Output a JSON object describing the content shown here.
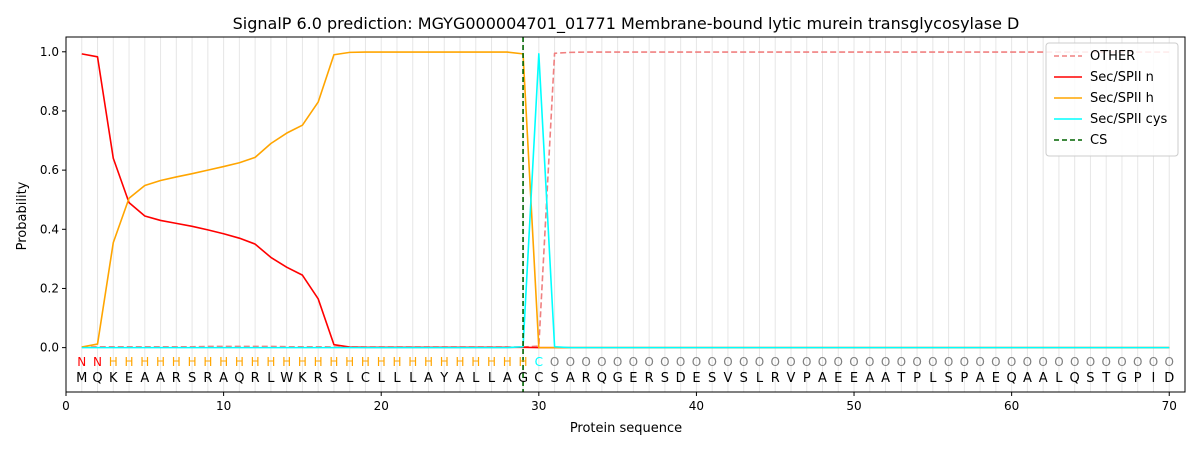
{
  "chart_data": {
    "type": "line",
    "title": "SignalP 6.0 prediction: MGYG000004701_01771 Membrane-bound lytic murein transglycosylase D",
    "xlabel": "Protein sequence",
    "ylabel": "Probability",
    "xlim": [
      0,
      71
    ],
    "ylim": [
      -0.15,
      1.05
    ],
    "x_ticks": [
      0,
      10,
      20,
      30,
      40,
      50,
      60,
      70
    ],
    "y_ticks": [
      0.0,
      0.2,
      0.4,
      0.6,
      0.8,
      1.0
    ],
    "x_tick_labels": [
      "0",
      "10",
      "20",
      "30",
      "40",
      "50",
      "60",
      "70"
    ],
    "y_tick_labels": [
      "0.0",
      "0.2",
      "0.4",
      "0.6",
      "0.8",
      "1.0"
    ],
    "grid": "vertical lines at each residue position",
    "legend_position": "top-right",
    "sequence": [
      "M",
      "Q",
      "K",
      "E",
      "A",
      "A",
      "R",
      "S",
      "R",
      "A",
      "Q",
      "R",
      "L",
      "W",
      "K",
      "R",
      "S",
      "L",
      "C",
      "L",
      "L",
      "L",
      "A",
      "Y",
      "A",
      "L",
      "L",
      "A",
      "G",
      "C",
      "S",
      "A",
      "R",
      "Q",
      "G",
      "E",
      "R",
      "S",
      "D",
      "E",
      "S",
      "V",
      "S",
      "L",
      "R",
      "V",
      "P",
      "A",
      "E",
      "E",
      "A",
      "A",
      "T",
      "P",
      "L",
      "S",
      "P",
      "A",
      "E",
      "Q",
      "A",
      "A",
      "L",
      "Q",
      "S",
      "T",
      "G",
      "P",
      "I",
      "D"
    ],
    "region_labels": [
      "N",
      "N",
      "H",
      "H",
      "H",
      "H",
      "H",
      "H",
      "H",
      "H",
      "H",
      "H",
      "H",
      "H",
      "H",
      "H",
      "H",
      "H",
      "H",
      "H",
      "H",
      "H",
      "H",
      "H",
      "H",
      "H",
      "H",
      "H",
      "H",
      "C",
      "O",
      "O",
      "O",
      "O",
      "O",
      "O",
      "O",
      "O",
      "O",
      "O",
      "O",
      "O",
      "O",
      "O",
      "O",
      "O",
      "O",
      "O",
      "O",
      "O",
      "O",
      "O",
      "O",
      "O",
      "O",
      "O",
      "O",
      "O",
      "O",
      "O",
      "O",
      "O",
      "O",
      "O",
      "O",
      "O",
      "O",
      "O",
      "O",
      "O"
    ],
    "region_label_colors": {
      "N": "#ff0000",
      "H": "#ffa500",
      "C": "#00ffff",
      "O": "#808080"
    },
    "series": [
      {
        "name": "OTHER",
        "color": "#f08080",
        "dash": "dashed",
        "x": [
          1,
          2,
          3,
          4,
          5,
          6,
          7,
          8,
          9,
          10,
          11,
          12,
          13,
          14,
          15,
          16,
          17,
          18,
          19,
          20,
          21,
          22,
          23,
          24,
          25,
          26,
          27,
          28,
          29,
          30,
          31,
          32,
          33,
          34,
          35,
          36,
          37,
          38,
          39,
          40,
          41,
          42,
          43,
          44,
          45,
          46,
          47,
          48,
          49,
          50,
          51,
          52,
          53,
          54,
          55,
          56,
          57,
          58,
          59,
          60,
          61,
          62,
          63,
          64,
          65,
          66,
          67,
          68,
          69,
          70
        ],
        "values": [
          0.002,
          0.003,
          0.003,
          0.003,
          0.003,
          0.003,
          0.003,
          0.003,
          0.004,
          0.004,
          0.004,
          0.004,
          0.004,
          0.003,
          0.003,
          0.003,
          0.002,
          0.002,
          0.002,
          0.002,
          0.002,
          0.002,
          0.002,
          0.002,
          0.002,
          0.002,
          0.002,
          0.002,
          0.002,
          0.005,
          0.995,
          0.998,
          0.999,
          0.999,
          0.999,
          0.999,
          0.999,
          0.999,
          0.999,
          0.999,
          0.999,
          0.999,
          0.999,
          0.999,
          0.999,
          0.999,
          0.999,
          0.999,
          0.999,
          0.999,
          0.999,
          0.999,
          0.999,
          0.999,
          0.999,
          0.999,
          0.999,
          0.999,
          0.999,
          0.999,
          0.999,
          0.999,
          0.999,
          0.999,
          0.999,
          0.999,
          0.999,
          0.999,
          0.999,
          0.999
        ]
      },
      {
        "name": "Sec/SPII n",
        "color": "#ff0000",
        "dash": "solid",
        "x": [
          1,
          2,
          3,
          4,
          5,
          6,
          7,
          8,
          9,
          10,
          11,
          12,
          13,
          14,
          15,
          16,
          17,
          18,
          19,
          20,
          21,
          22,
          23,
          24,
          25,
          26,
          27,
          28,
          29,
          30,
          31,
          32,
          33,
          34,
          35,
          36,
          37,
          38,
          39,
          40,
          41,
          42,
          43,
          44,
          45,
          46,
          47,
          48,
          49,
          50,
          51,
          52,
          53,
          54,
          55,
          56,
          57,
          58,
          59,
          60,
          61,
          62,
          63,
          64,
          65,
          66,
          67,
          68,
          69,
          70
        ],
        "values": [
          0.993,
          0.983,
          0.64,
          0.49,
          0.445,
          0.43,
          0.42,
          0.41,
          0.398,
          0.385,
          0.37,
          0.35,
          0.305,
          0.272,
          0.245,
          0.165,
          0.01,
          0.002,
          0.001,
          0.001,
          0.001,
          0.001,
          0.001,
          0.001,
          0.001,
          0.001,
          0.001,
          0.001,
          0.001,
          0.0,
          0.0,
          0.0,
          0.0,
          0.0,
          0.0,
          0.0,
          0.0,
          0.0,
          0.0,
          0.0,
          0.0,
          0.0,
          0.0,
          0.0,
          0.0,
          0.0,
          0.0,
          0.0,
          0.0,
          0.0,
          0.0,
          0.0,
          0.0,
          0.0,
          0.0,
          0.0,
          0.0,
          0.0,
          0.0,
          0.0,
          0.0,
          0.0,
          0.0,
          0.0,
          0.0,
          0.0,
          0.0,
          0.0,
          0.0,
          0.0
        ]
      },
      {
        "name": "Sec/SPII h",
        "color": "#ffa500",
        "dash": "solid",
        "x": [
          1,
          2,
          3,
          4,
          5,
          6,
          7,
          8,
          9,
          10,
          11,
          12,
          13,
          14,
          15,
          16,
          17,
          18,
          19,
          20,
          21,
          22,
          23,
          24,
          25,
          26,
          27,
          28,
          29,
          30,
          31,
          32,
          33,
          34,
          35,
          36,
          37,
          38,
          39,
          40,
          41,
          42,
          43,
          44,
          45,
          46,
          47,
          48,
          49,
          50,
          51,
          52,
          53,
          54,
          55,
          56,
          57,
          58,
          59,
          60,
          61,
          62,
          63,
          64,
          65,
          66,
          67,
          68,
          69,
          70
        ],
        "values": [
          0.002,
          0.012,
          0.355,
          0.505,
          0.548,
          0.565,
          0.577,
          0.588,
          0.6,
          0.612,
          0.625,
          0.643,
          0.69,
          0.725,
          0.752,
          0.83,
          0.99,
          0.998,
          0.999,
          0.999,
          0.999,
          0.999,
          0.999,
          0.999,
          0.999,
          0.999,
          0.999,
          0.999,
          0.993,
          0.0,
          0.0,
          0.0,
          0.0,
          0.0,
          0.0,
          0.0,
          0.0,
          0.0,
          0.0,
          0.0,
          0.0,
          0.0,
          0.0,
          0.0,
          0.0,
          0.0,
          0.0,
          0.0,
          0.0,
          0.0,
          0.0,
          0.0,
          0.0,
          0.0,
          0.0,
          0.0,
          0.0,
          0.0,
          0.0,
          0.0,
          0.0,
          0.0,
          0.0,
          0.0,
          0.0,
          0.0,
          0.0,
          0.0,
          0.0,
          0.0
        ]
      },
      {
        "name": "Sec/SPII cys",
        "color": "#00ffff",
        "dash": "solid",
        "x": [
          1,
          2,
          3,
          4,
          5,
          6,
          7,
          8,
          9,
          10,
          11,
          12,
          13,
          14,
          15,
          16,
          17,
          18,
          19,
          20,
          21,
          22,
          23,
          24,
          25,
          26,
          27,
          28,
          29,
          30,
          31,
          32,
          33,
          34,
          35,
          36,
          37,
          38,
          39,
          40,
          41,
          42,
          43,
          44,
          45,
          46,
          47,
          48,
          49,
          50,
          51,
          52,
          53,
          54,
          55,
          56,
          57,
          58,
          59,
          60,
          61,
          62,
          63,
          64,
          65,
          66,
          67,
          68,
          69,
          70
        ],
        "values": [
          0.0,
          0.0,
          0.0,
          0.0,
          0.0,
          0.0,
          0.0,
          0.0,
          0.0,
          0.0,
          0.0,
          0.0,
          0.0,
          0.0,
          0.0,
          0.0,
          0.0,
          0.0,
          0.0,
          0.0,
          0.0,
          0.0,
          0.0,
          0.0,
          0.0,
          0.0,
          0.0,
          0.0,
          0.003,
          0.993,
          0.003,
          0.0,
          0.0,
          0.0,
          0.0,
          0.0,
          0.0,
          0.0,
          0.0,
          0.0,
          0.0,
          0.0,
          0.0,
          0.0,
          0.0,
          0.0,
          0.0,
          0.0,
          0.0,
          0.0,
          0.0,
          0.0,
          0.0,
          0.0,
          0.0,
          0.0,
          0.0,
          0.0,
          0.0,
          0.0,
          0.0,
          0.0,
          0.0,
          0.0,
          0.0,
          0.0,
          0.0,
          0.0,
          0.0,
          0.0
        ]
      }
    ],
    "cs_line": {
      "name": "CS",
      "x": 29,
      "color": "#006400",
      "dash": "dashed"
    }
  }
}
